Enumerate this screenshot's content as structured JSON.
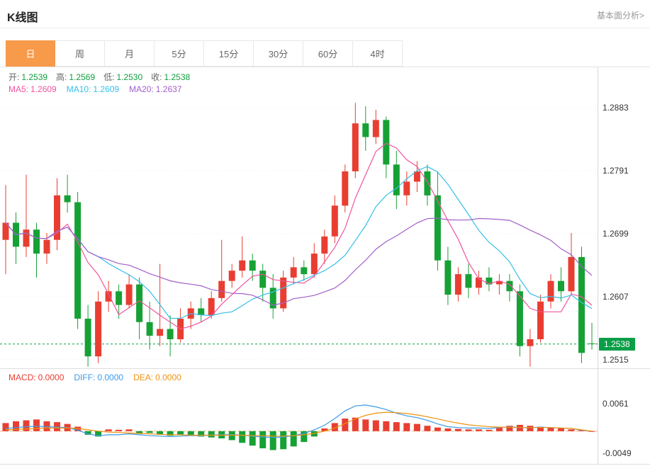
{
  "header": {
    "title": "K线图",
    "link": "基本面分析>"
  },
  "tabs": {
    "items": [
      "日",
      "周",
      "月",
      "5分",
      "15分",
      "30分",
      "60分",
      "4时"
    ],
    "active": "日"
  },
  "ohlc": {
    "open_label": "开:",
    "open": "1.2539",
    "high_label": "高:",
    "high": "1.2569",
    "low_label": "低:",
    "low": "1.2530",
    "close_label": "收:",
    "close": "1.2538"
  },
  "ma": {
    "ma5_label": "MA5:",
    "ma5": "1.2609",
    "ma10_label": "MA10:",
    "ma10": "1.2609",
    "ma20_label": "MA20:",
    "ma20": "1.2637"
  },
  "macd_header": {
    "macd_label": "MACD:",
    "macd": "0.0000",
    "diff_label": "DIFF:",
    "diff": "0.0000",
    "dea_label": "DEA:",
    "dea": "0.0000"
  },
  "price_axis": {
    "labels": [
      "1.2883",
      "1.2791",
      "1.2699",
      "1.2607",
      "1.2515"
    ],
    "current": "1.2538"
  },
  "macd_axis": {
    "top": "0.0061",
    "bottom": "-0.0049"
  },
  "colors": {
    "up": "#e83e32",
    "down": "#16a135",
    "ma5": "#f2539e",
    "ma10": "#35bfe8",
    "ma20": "#a35fc9",
    "diff": "#3c9be8",
    "dea": "#f0920f",
    "tag": "#0a9e47",
    "accent": "#f79a4a",
    "grid": "#ededed"
  },
  "chart_data": {
    "type": "candlestick",
    "title": "K线图",
    "panels": [
      "price",
      "macd"
    ],
    "price_axis_ticks": [
      1.2883,
      1.2791,
      1.2699,
      1.2607,
      1.2515
    ],
    "current_price": 1.2538,
    "ohlc_last": {
      "open": 1.2539,
      "high": 1.2569,
      "low": 1.253,
      "close": 1.2538
    },
    "ma_periods": [
      5,
      10,
      20
    ],
    "ma_values": {
      "MA5": 1.2609,
      "MA10": 1.2609,
      "MA20": 1.2637
    },
    "candles": [
      [
        1.269,
        1.277,
        1.264,
        1.2715
      ],
      [
        1.2715,
        1.273,
        1.2655,
        1.268
      ],
      [
        1.268,
        1.2785,
        1.2665,
        1.2705
      ],
      [
        1.2705,
        1.2715,
        1.2635,
        1.267
      ],
      [
        1.267,
        1.27,
        1.2655,
        1.269
      ],
      [
        1.269,
        1.278,
        1.2675,
        1.2755
      ],
      [
        1.2755,
        1.2785,
        1.273,
        1.2745
      ],
      [
        1.2745,
        1.276,
        1.256,
        1.2575
      ],
      [
        1.2575,
        1.2595,
        1.2505,
        1.252
      ],
      [
        1.252,
        1.2615,
        1.251,
        1.26
      ],
      [
        1.26,
        1.263,
        1.2585,
        1.2615
      ],
      [
        1.2615,
        1.2625,
        1.2575,
        1.2595
      ],
      [
        1.2595,
        1.264,
        1.259,
        1.2625
      ],
      [
        1.2625,
        1.2635,
        1.2545,
        1.257
      ],
      [
        1.257,
        1.26,
        1.253,
        1.255
      ],
      [
        1.255,
        1.2655,
        1.2535,
        1.256
      ],
      [
        1.256,
        1.258,
        1.252,
        1.2545
      ],
      [
        1.2545,
        1.259,
        1.254,
        1.2575
      ],
      [
        1.2575,
        1.26,
        1.256,
        1.259
      ],
      [
        1.259,
        1.2605,
        1.257,
        1.258
      ],
      [
        1.258,
        1.2615,
        1.2575,
        1.2605
      ],
      [
        1.2605,
        1.269,
        1.26,
        1.263
      ],
      [
        1.263,
        1.2655,
        1.262,
        1.2645
      ],
      [
        1.2645,
        1.2695,
        1.2635,
        1.266
      ],
      [
        1.266,
        1.267,
        1.263,
        1.2645
      ],
      [
        1.2645,
        1.2655,
        1.26,
        1.262
      ],
      [
        1.262,
        1.264,
        1.2575,
        1.259
      ],
      [
        1.259,
        1.2645,
        1.2585,
        1.2635
      ],
      [
        1.2635,
        1.2665,
        1.2625,
        1.265
      ],
      [
        1.265,
        1.266,
        1.263,
        1.264
      ],
      [
        1.264,
        1.2685,
        1.2635,
        1.267
      ],
      [
        1.267,
        1.2705,
        1.2655,
        1.2695
      ],
      [
        1.2695,
        1.2755,
        1.2685,
        1.274
      ],
      [
        1.274,
        1.28,
        1.273,
        1.279
      ],
      [
        1.279,
        1.289,
        1.278,
        1.286
      ],
      [
        1.286,
        1.2885,
        1.282,
        1.284
      ],
      [
        1.284,
        1.288,
        1.283,
        1.2865
      ],
      [
        1.2865,
        1.287,
        1.278,
        1.28
      ],
      [
        1.28,
        1.282,
        1.2735,
        1.2755
      ],
      [
        1.2755,
        1.279,
        1.274,
        1.2775
      ],
      [
        1.2775,
        1.2805,
        1.276,
        1.279
      ],
      [
        1.279,
        1.28,
        1.274,
        1.2755
      ],
      [
        1.2755,
        1.279,
        1.2645,
        1.266
      ],
      [
        1.266,
        1.268,
        1.2595,
        1.261
      ],
      [
        1.261,
        1.265,
        1.26,
        1.264
      ],
      [
        1.264,
        1.2655,
        1.2605,
        1.262
      ],
      [
        1.262,
        1.2645,
        1.261,
        1.2635
      ],
      [
        1.2635,
        1.265,
        1.2615,
        1.2625
      ],
      [
        1.2625,
        1.264,
        1.261,
        1.263
      ],
      [
        1.263,
        1.264,
        1.26,
        1.2615
      ],
      [
        1.2615,
        1.2625,
        1.252,
        1.2535
      ],
      [
        1.2535,
        1.256,
        1.2505,
        1.2545
      ],
      [
        1.2545,
        1.261,
        1.254,
        1.26
      ],
      [
        1.26,
        1.264,
        1.259,
        1.263
      ],
      [
        1.263,
        1.265,
        1.26,
        1.2615
      ],
      [
        1.2615,
        1.27,
        1.261,
        1.2665
      ],
      [
        1.2665,
        1.268,
        1.251,
        1.2525
      ],
      [
        1.2539,
        1.2569,
        1.253,
        1.2538
      ]
    ],
    "macd": {
      "axis_ticks": [
        0.0061,
        -0.0049
      ],
      "last": {
        "macd": 0.0,
        "diff": 0.0,
        "dea": 0.0
      },
      "hist": [
        0.0018,
        0.0022,
        0.0024,
        0.0026,
        0.0022,
        0.002,
        0.0016,
        0.001,
        -0.0008,
        -0.0012,
        0.0004,
        0.0003,
        0.0004,
        -0.0006,
        -0.0004,
        -0.0008,
        -0.001,
        -0.0008,
        -0.001,
        -0.0012,
        -0.0014,
        -0.0016,
        -0.002,
        -0.0026,
        -0.0032,
        -0.0038,
        -0.0042,
        -0.004,
        -0.0034,
        -0.0024,
        -0.0012,
        0.0006,
        0.0018,
        0.0028,
        0.003,
        0.0026,
        0.0024,
        0.0022,
        0.002,
        0.0018,
        0.0016,
        0.0012,
        0.0008,
        0.0006,
        0.0005,
        0.0004,
        0.0004,
        0.0003,
        0.001,
        0.0012,
        0.0014,
        0.0012,
        0.001,
        0.0008,
        0.0006,
        0.0004,
        0.0002,
        0.0
      ],
      "diff": [
        0.0006,
        0.0008,
        0.001,
        0.0011,
        0.001,
        0.0009,
        0.0008,
        0.0002,
        -0.0006,
        -0.001,
        -0.0008,
        -0.0008,
        -0.0006,
        -0.0008,
        -0.001,
        -0.0011,
        -0.0012,
        -0.0011,
        -0.001,
        -0.001,
        -0.0009,
        -0.0008,
        -0.0008,
        -0.0009,
        -0.0011,
        -0.0013,
        -0.0014,
        -0.0013,
        -0.001,
        -0.0005,
        0.0003,
        0.0013,
        0.0028,
        0.0045,
        0.0056,
        0.0058,
        0.0054,
        0.0048,
        0.004,
        0.0034,
        0.003,
        0.0024,
        0.0016,
        0.001,
        0.0008,
        0.0007,
        0.0007,
        0.0006,
        0.0008,
        0.001,
        0.0008,
        0.0008,
        0.0009,
        0.0008,
        0.0007,
        0.0006,
        0.0002,
        0.0
      ],
      "dea": [
        0.0003,
        0.0004,
        0.0005,
        0.0006,
        0.0007,
        0.0007,
        0.0007,
        0.0006,
        0.0003,
        0.0,
        -0.0002,
        -0.0003,
        -0.0004,
        -0.0005,
        -0.0006,
        -0.0007,
        -0.0008,
        -0.0008,
        -0.0009,
        -0.0009,
        -0.0009,
        -0.0009,
        -0.0009,
        -0.0009,
        -0.001,
        -0.001,
        -0.0011,
        -0.0011,
        -0.001,
        -0.0008,
        -0.0005,
        0.0,
        0.0007,
        0.0017,
        0.0027,
        0.0035,
        0.004,
        0.0042,
        0.0041,
        0.0039,
        0.0036,
        0.0032,
        0.0027,
        0.0022,
        0.0018,
        0.0014,
        0.0012,
        0.001,
        0.0009,
        0.0009,
        0.0008,
        0.0008,
        0.0008,
        0.0008,
        0.0007,
        0.0006,
        0.0003,
        0.0
      ]
    }
  }
}
